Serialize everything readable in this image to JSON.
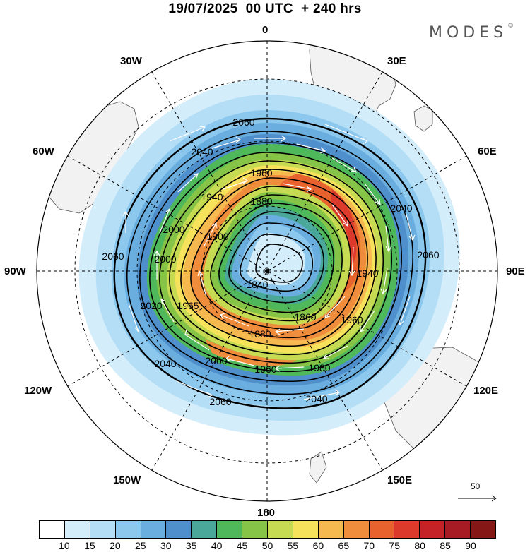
{
  "title": "19/07/2025  00 UTC  + 240 hrs",
  "brand": "MODES",
  "brand_mark": "©",
  "longitude_labels": {
    "lon_0": "0",
    "lon_30e": "30E",
    "lon_60e": "60E",
    "lon_90e": "90E",
    "lon_120e": "120E",
    "lon_150e": "150E",
    "lon_180": "180",
    "lon_150w": "150W",
    "lon_120w": "120W",
    "lon_90w": "90W",
    "lon_60w": "60W",
    "lon_30w": "30W"
  },
  "contour_labels": [
    "2060",
    "2040",
    "1960",
    "1940",
    "1880",
    "2000",
    "1900",
    "2060",
    "2000",
    "1965",
    "1840",
    "2020",
    "1880",
    "1860",
    "1960",
    "1940",
    "2040",
    "1960",
    "1980",
    "2000",
    "2040",
    "2060",
    "2060",
    "2040"
  ],
  "reference_vector": "50",
  "colorbar": {
    "ticks": [
      "10",
      "15",
      "20",
      "25",
      "30",
      "35",
      "40",
      "45",
      "50",
      "55",
      "60",
      "65",
      "70",
      "75",
      "80",
      "85",
      "90"
    ],
    "colors": [
      "#ffffff",
      "#d4edfa",
      "#b3def6",
      "#8cc8ee",
      "#6aaee0",
      "#4f8fcb",
      "#4aa89a",
      "#4fb85a",
      "#86c447",
      "#c6da52",
      "#f6e35b",
      "#f5b94f",
      "#f08d3c",
      "#e8622e",
      "#dc3b2b",
      "#c52227",
      "#a61b24",
      "#861717"
    ]
  }
}
